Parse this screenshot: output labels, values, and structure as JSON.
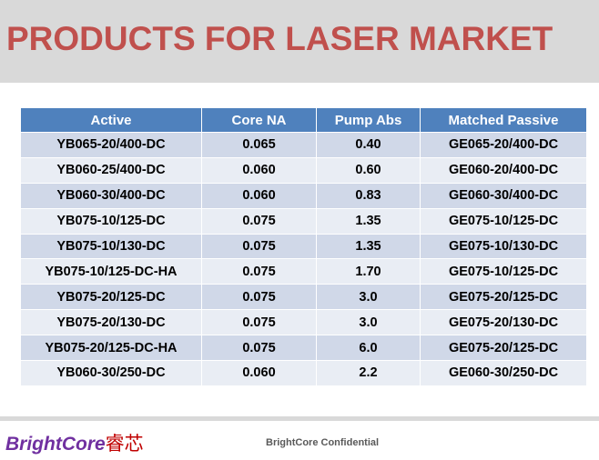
{
  "header": {
    "title": "PRODUCTS FOR LASER MARKET"
  },
  "table": {
    "columns": [
      "Active",
      "Core NA",
      "Pump Abs",
      "Matched Passive"
    ],
    "rows": [
      [
        "YB065-20/400-DC",
        "0.065",
        "0.40",
        "GE065-20/400-DC"
      ],
      [
        "YB060-25/400-DC",
        "0.060",
        "0.60",
        "GE060-20/400-DC"
      ],
      [
        "YB060-30/400-DC",
        "0.060",
        "0.83",
        "GE060-30/400-DC"
      ],
      [
        "YB075-10/125-DC",
        "0.075",
        "1.35",
        "GE075-10/125-DC"
      ],
      [
        "YB075-10/130-DC",
        "0.075",
        "1.35",
        "GE075-10/130-DC"
      ],
      [
        "YB075-10/125-DC-HA",
        "0.075",
        "1.70",
        "GE075-10/125-DC"
      ],
      [
        "YB075-20/125-DC",
        "0.075",
        "3.0",
        "GE075-20/125-DC"
      ],
      [
        "YB075-20/130-DC",
        "0.075",
        "3.0",
        "GE075-20/130-DC"
      ],
      [
        "YB075-20/125-DC-HA",
        "0.075",
        "6.0",
        "GE075-20/125-DC"
      ],
      [
        "YB060-30/250-DC",
        "0.060",
        "2.2",
        "GE060-30/250-DC"
      ]
    ]
  },
  "footer": {
    "logo_en": "BrightCore",
    "logo_cn": "睿芯",
    "confidential": "BrightCore Confidential"
  },
  "colors": {
    "title": "#c0504d",
    "header_band": "#d9d9d9",
    "table_header": "#4f81bd",
    "row_odd": "#d0d8e8",
    "row_even": "#e9edf4",
    "logo_en": "#7030a0",
    "logo_cn": "#c00000"
  }
}
